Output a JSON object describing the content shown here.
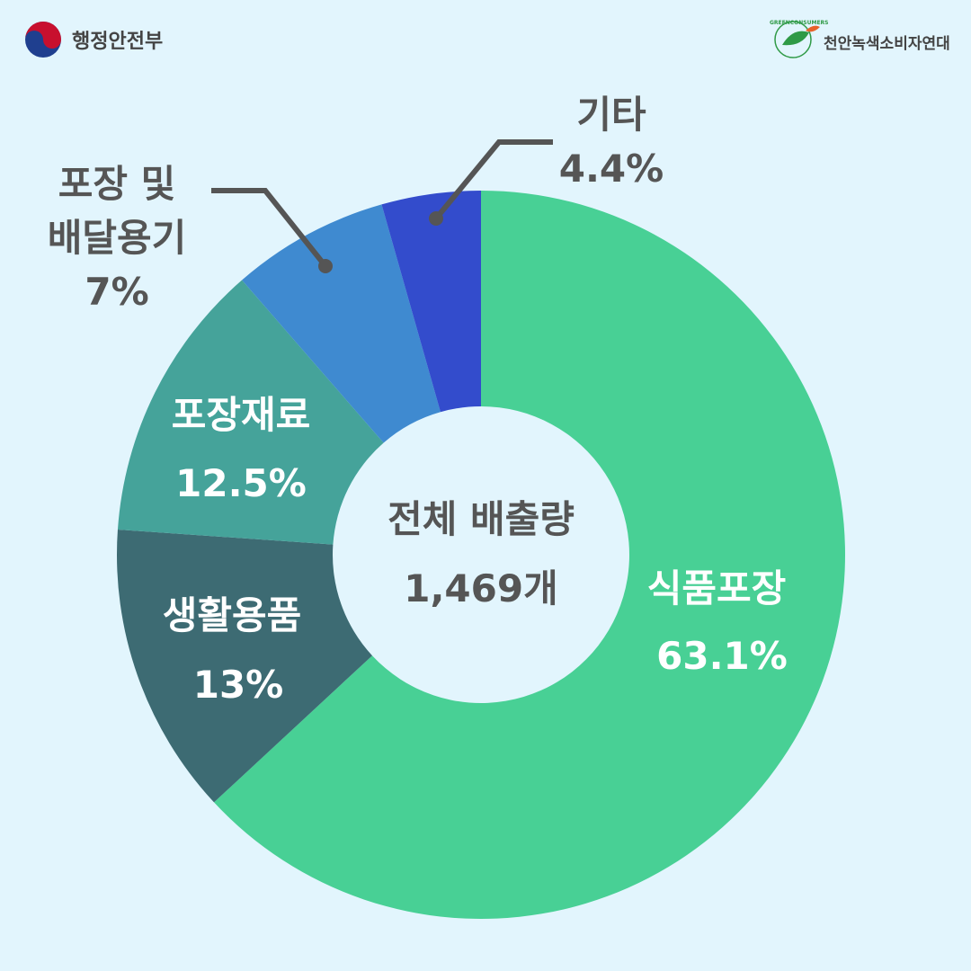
{
  "header": {
    "left_org": "행정안전부",
    "right_org": "천안녹색소비자연대",
    "right_logo_text": "GREENCONSUMERS"
  },
  "chart_data": {
    "type": "donut",
    "categories": [
      "식품포장",
      "생활용품",
      "포장재료",
      "포장 및\n배달용기",
      "기타"
    ],
    "values": [
      63.1,
      13,
      12.5,
      7,
      4.4
    ],
    "value_labels": [
      "63.1%",
      "13%",
      "12.5%",
      "7%",
      "4.4%"
    ],
    "colors": [
      "#48d095",
      "#3d6b73",
      "#45a39a",
      "#3f8ad0",
      "#334ccc"
    ],
    "center_title": "전체 배출량",
    "center_value": "1,469개"
  }
}
